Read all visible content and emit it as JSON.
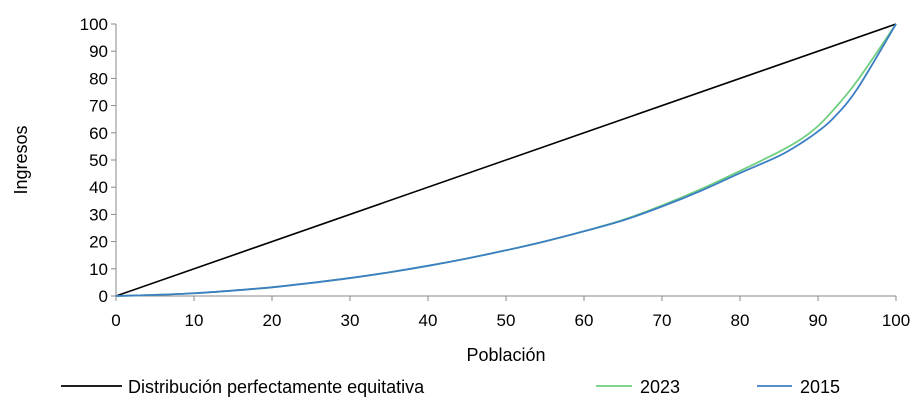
{
  "chart_data": {
    "type": "line",
    "title": "",
    "xlabel": "Población",
    "ylabel": "Ingresos",
    "xlim": [
      0,
      100
    ],
    "ylim": [
      0,
      100
    ],
    "x_ticks": [
      0,
      10,
      20,
      30,
      40,
      50,
      60,
      70,
      80,
      90,
      100
    ],
    "y_ticks": [
      0,
      10,
      20,
      30,
      40,
      50,
      60,
      70,
      80,
      90,
      100
    ],
    "grid": false,
    "legend_position": "bottom",
    "series": [
      {
        "name": "Distribución perfectamente equitativa",
        "color": "#000000",
        "x": [
          0,
          100
        ],
        "y": [
          0,
          100
        ]
      },
      {
        "name": "2023",
        "color": "#6fcf7f",
        "x": [
          0,
          5,
          10,
          15,
          20,
          25,
          30,
          35,
          40,
          45,
          50,
          55,
          60,
          65,
          70,
          75,
          80,
          85,
          88,
          90,
          92,
          95,
          100
        ],
        "y": [
          0,
          0.4,
          1.0,
          2.0,
          3.2,
          4.8,
          6.6,
          8.7,
          11.1,
          13.8,
          16.8,
          20.1,
          23.8,
          28.0,
          33.3,
          39.3,
          46.0,
          53.0,
          58.0,
          62.5,
          68.5,
          79.0,
          100
        ]
      },
      {
        "name": "2015",
        "color": "#3c7fc4",
        "x": [
          0,
          5,
          10,
          15,
          20,
          25,
          30,
          35,
          40,
          45,
          50,
          55,
          60,
          65,
          70,
          75,
          80,
          85,
          88,
          90,
          92,
          95,
          100
        ],
        "y": [
          0,
          0.4,
          1.0,
          2.0,
          3.2,
          4.8,
          6.6,
          8.7,
          11.1,
          13.8,
          16.8,
          20.1,
          23.8,
          27.8,
          32.9,
          38.7,
          45.2,
          51.5,
          56.5,
          60.5,
          65.5,
          76.0,
          100
        ]
      }
    ]
  }
}
